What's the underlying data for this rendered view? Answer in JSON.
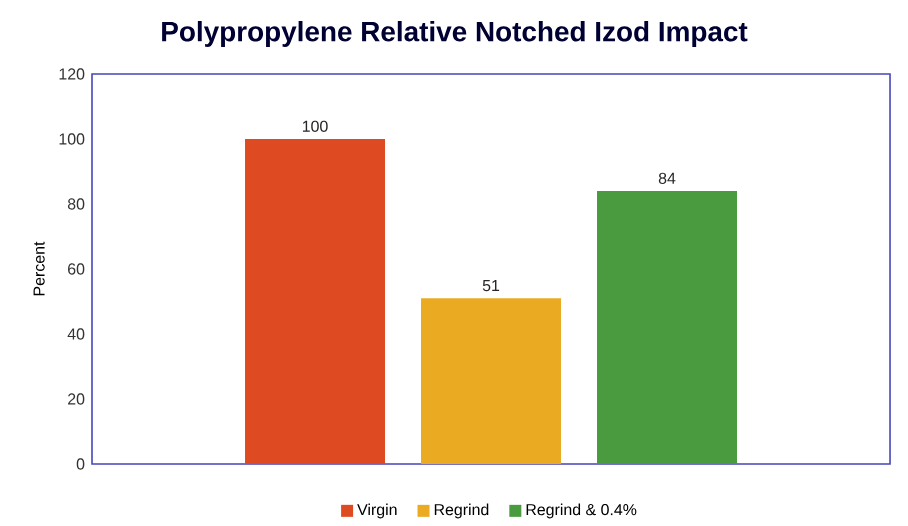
{
  "chart_data": {
    "type": "bar",
    "title": "Polypropylene Relative Notched Izod Impact",
    "ylabel": "Percent",
    "categories": [
      null
    ],
    "series": [
      {
        "name": "Virgin",
        "color": "#de4b22",
        "values": [
          100
        ]
      },
      {
        "name": "Regrind",
        "color": "#eaaa22",
        "values": [
          51
        ]
      },
      {
        "name": "Regrind & 0.4%",
        "color": "#4a9a40",
        "values": [
          84
        ]
      }
    ],
    "ylim": [
      0,
      120
    ],
    "yticks": [
      0,
      20,
      40,
      60,
      80,
      100,
      120
    ],
    "data_labels": true,
    "legend": "bottom",
    "grid": false
  }
}
